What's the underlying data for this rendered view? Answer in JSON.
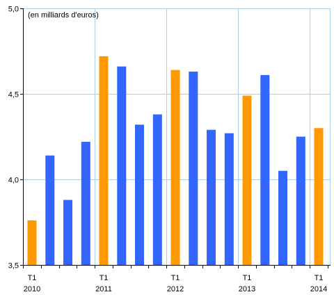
{
  "chart_data": {
    "type": "bar",
    "unit_label": "(en milliards d'euros)",
    "ylim": [
      3.5,
      5.0
    ],
    "yticks": [
      "5,0",
      "4,5",
      "4,0",
      "3,5"
    ],
    "ytick_values": [
      5.0,
      4.5,
      4.0,
      3.5
    ],
    "grid": true,
    "x_labels": [
      {
        "index": 0,
        "quarter": "T1",
        "year": "2010"
      },
      {
        "index": 4,
        "quarter": "T1",
        "year": "2011"
      },
      {
        "index": 8,
        "quarter": "T1",
        "year": "2012"
      },
      {
        "index": 12,
        "quarter": "T1",
        "year": "2013"
      },
      {
        "index": 16,
        "quarter": "T1",
        "year": "2014"
      }
    ],
    "values": [
      3.76,
      4.14,
      3.88,
      4.22,
      4.72,
      4.66,
      4.32,
      4.38,
      4.64,
      4.63,
      4.29,
      4.27,
      4.49,
      4.61,
      4.05,
      4.25,
      4.3
    ],
    "highlight_indices": [
      0,
      4,
      8,
      12,
      16
    ],
    "colors": {
      "highlight": "#FF9900",
      "normal": "#3366FF",
      "grid": "#A8D0F0",
      "axis": "#000000"
    }
  }
}
